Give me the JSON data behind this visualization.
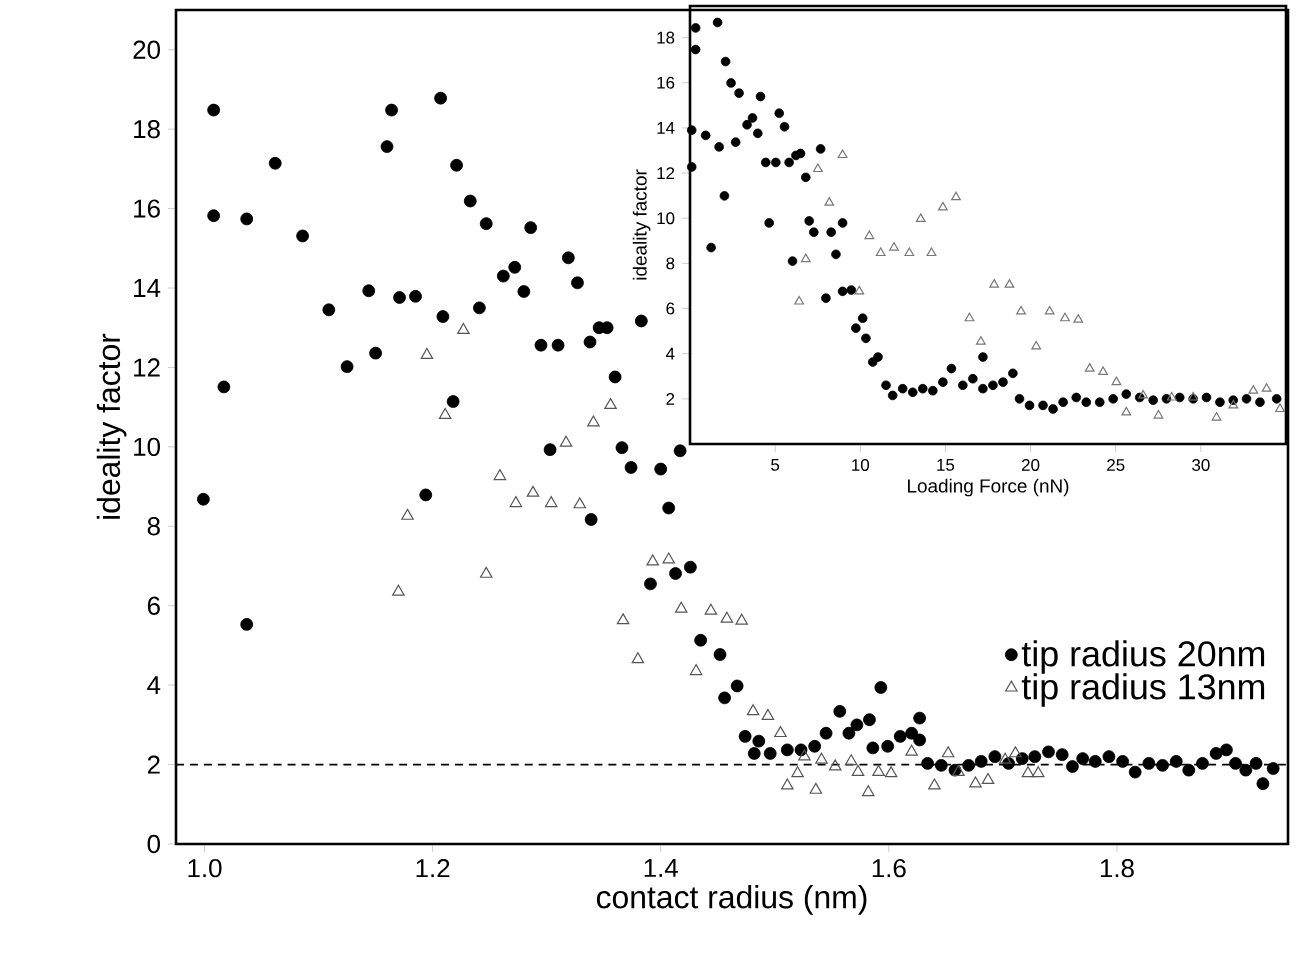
{
  "chart_data": [
    {
      "type": "scatter",
      "xlabel": "contact radius (nm)",
      "ylabel": "ideality factor",
      "xlim": [
        0.975,
        1.95
      ],
      "ylim": [
        0,
        21
      ],
      "xticks": [
        {
          "value": 1,
          "label": "1.0"
        },
        1.2,
        1.4,
        1.6,
        1.8
      ],
      "yticks": [
        0,
        2,
        4,
        6,
        8,
        10,
        12,
        14,
        16,
        18,
        20
      ],
      "legend": "bottom right",
      "ref_lines": [
        {
          "axis": "y",
          "value": 2,
          "line_style": "dashed",
          "color": "#000000"
        }
      ],
      "series": [
        {
          "name": "tip radius 20nm",
          "color": "#000000",
          "marker": "circle",
          "x": [
            1.008,
            1.008,
            1.037,
            1.062,
            1.086,
            1.017,
            1.109,
            1.125,
            1.144,
            1.15,
            1.16,
            1.164,
            1.171,
            1.185,
            1.207,
            1.209,
            1.218,
            1.221,
            1.233,
            1.241,
            1.247,
            1.262,
            1.272,
            1.28,
            1.286,
            1.295,
            1.31,
            1.319,
            1.327,
            1.338,
            1.346,
            1.353,
            1.36,
            1.383,
            1.303,
            1.366,
            1.374,
            1.4,
            1.417,
            1.194,
            0.999,
            1.037,
            1.339,
            1.407,
            1.391,
            1.413,
            1.426,
            1.435,
            1.452,
            1.456,
            1.467,
            1.474,
            1.486,
            1.482,
            1.496,
            1.511,
            1.523,
            1.535,
            1.545,
            1.557,
            1.565,
            1.572,
            1.583,
            1.586,
            1.593,
            1.599,
            1.61,
            1.62,
            1.627,
            1.627,
            1.634,
            1.646,
            1.658,
            1.67,
            1.681,
            1.693,
            1.705,
            1.717,
            1.728,
            1.74,
            1.752,
            1.761,
            1.77,
            1.781,
            1.793,
            1.805,
            1.816,
            1.828,
            1.84,
            1.852,
            1.863,
            1.875,
            1.887,
            1.896,
            1.904,
            1.913,
            1.922,
            1.928,
            1.937
          ],
          "values": [
            18.48,
            15.82,
            15.74,
            17.14,
            15.31,
            11.51,
            13.45,
            12.02,
            13.93,
            12.36,
            17.56,
            18.48,
            13.76,
            13.79,
            18.78,
            13.28,
            11.14,
            17.09,
            16.19,
            13.5,
            15.62,
            14.3,
            14.52,
            13.91,
            15.52,
            12.56,
            12.56,
            14.76,
            14.13,
            12.64,
            13.0,
            13.0,
            11.76,
            13.17,
            9.93,
            9.98,
            9.48,
            9.44,
            9.9,
            8.79,
            8.68,
            5.53,
            8.17,
            8.46,
            6.55,
            6.81,
            6.97,
            5.13,
            4.77,
            3.68,
            3.98,
            2.71,
            2.59,
            2.28,
            2.28,
            2.37,
            2.37,
            2.46,
            2.79,
            3.34,
            2.79,
            3.0,
            3.13,
            2.42,
            3.94,
            2.46,
            2.71,
            2.79,
            3.17,
            2.62,
            2.03,
            1.98,
            1.86,
            1.98,
            2.08,
            2.2,
            2.03,
            2.15,
            2.2,
            2.32,
            2.25,
            1.95,
            2.15,
            2.08,
            2.2,
            2.08,
            1.81,
            2.03,
            1.98,
            2.08,
            1.86,
            2.03,
            2.28,
            2.37,
            2.03,
            1.86,
            2.03,
            1.52,
            1.9
          ]
        },
        {
          "name": "tip radius 13nm",
          "color": "#555555",
          "marker": "triangle",
          "x": [
            1.195,
            1.227,
            1.211,
            1.317,
            1.341,
            1.356,
            1.259,
            1.288,
            1.178,
            1.17,
            1.273,
            1.304,
            1.329,
            1.247,
            1.367,
            1.38,
            1.393,
            1.407,
            1.418,
            1.431,
            1.444,
            1.458,
            1.471,
            1.481,
            1.494,
            1.505,
            1.511,
            1.52,
            1.536,
            1.526,
            1.541,
            1.553,
            1.567,
            1.573,
            1.582,
            1.591,
            1.602,
            1.62,
            1.64,
            1.652,
            1.661,
            1.676,
            1.687,
            1.702,
            1.711,
            1.722,
            1.731
          ],
          "values": [
            12.31,
            12.94,
            10.8,
            10.1,
            10.61,
            11.05,
            9.26,
            8.84,
            8.26,
            6.35,
            8.58,
            8.58,
            8.55,
            6.8,
            5.63,
            4.65,
            7.11,
            7.16,
            5.92,
            4.35,
            5.87,
            5.67,
            5.62,
            3.34,
            3.22,
            2.79,
            1.47,
            1.78,
            1.36,
            2.2,
            2.12,
            1.95,
            2.08,
            1.81,
            1.3,
            1.81,
            1.78,
            2.32,
            1.47,
            2.28,
            1.81,
            1.52,
            1.61,
            2.12,
            2.28,
            1.78,
            1.78
          ]
        }
      ]
    },
    {
      "type": "scatter",
      "xlabel": "Loading Force (nN)",
      "ylabel": "ideality factor",
      "xlim": [
        0,
        35
      ],
      "ylim": [
        0,
        19.4
      ],
      "xticks": [
        5,
        10,
        15,
        20,
        25,
        30
      ],
      "yticks": [
        2,
        4,
        6,
        8,
        10,
        12,
        14,
        16,
        18
      ],
      "series": [
        {
          "color": "#000000",
          "marker": "circle",
          "x": [
            0.33,
            0.33,
            1.62,
            0.1,
            0.1,
            0.92,
            1.24,
            1.71,
            2.02,
            2.09,
            2.41,
            2.68,
            2.88,
            3.35,
            3.67,
            3.98,
            4.14,
            4.45,
            5.04,
            4.65,
            5.24,
            5.55,
            5.82,
            6.22,
            6.49,
            6.02,
            6.8,
            7.0,
            7.27,
            7.67,
            7.98,
            8.29,
            8.57,
            8.96,
            8.96,
            9.47,
            9.74,
            10.14,
            10.33,
            10.73,
            11.04,
            11.51,
            11.9,
            12.49,
            13.08,
            13.67,
            14.26,
            14.85,
            15.35,
            16.02,
            16.61,
            17.2,
            17.2,
            17.79,
            18.38,
            18.96,
            19.35,
            19.94,
            20.73,
            21.32,
            21.91,
            22.68,
            23.27,
            24.06,
            24.85,
            25.62,
            26.41,
            27.2,
            27.98,
            28.76,
            29.55,
            30.33,
            31.12,
            31.9,
            32.68,
            33.47,
            34.45
          ],
          "values": [
            18.43,
            17.47,
            18.67,
            12.27,
            13.9,
            13.67,
            8.7,
            13.16,
            10.99,
            16.94,
            15.99,
            13.37,
            15.54,
            14.14,
            14.44,
            13.76,
            15.39,
            12.47,
            12.47,
            9.79,
            14.65,
            14.05,
            12.47,
            12.78,
            12.87,
            8.1,
            11.81,
            9.88,
            9.38,
            13.07,
            6.46,
            9.38,
            8.4,
            9.79,
            6.76,
            6.82,
            5.13,
            5.57,
            4.68,
            3.63,
            3.85,
            2.6,
            2.15,
            2.45,
            2.29,
            2.45,
            2.36,
            2.74,
            3.34,
            2.6,
            2.89,
            2.45,
            3.85,
            2.6,
            2.74,
            3.13,
            2.0,
            1.71,
            1.71,
            1.55,
            1.85,
            2.06,
            1.85,
            1.85,
            2.0,
            2.21,
            2.06,
            1.94,
            2.0,
            2.06,
            2.0,
            2.06,
            1.85,
            1.94,
            2.0,
            1.85,
            2.0
          ]
        },
        {
          "color": "#777777",
          "marker": "triangle",
          "x": [
            8.96,
            7.51,
            8.18,
            6.8,
            6.41,
            9.94,
            10.53,
            11.2,
            11.98,
            12.88,
            13.55,
            14.18,
            14.85,
            15.62,
            16.41,
            17.08,
            17.86,
            18.76,
            19.44,
            20.33,
            21.12,
            22.02,
            22.8,
            23.47,
            24.26,
            25.04,
            25.62,
            26.61,
            27.51,
            28.29,
            29.55,
            30.92,
            31.91,
            33.08,
            33.86,
            34.65
          ],
          "values": [
            12.8,
            12.18,
            10.69,
            8.19,
            6.31,
            6.76,
            9.21,
            8.46,
            8.7,
            8.46,
            9.97,
            8.46,
            10.48,
            10.93,
            5.57,
            4.53,
            7.06,
            7.06,
            5.87,
            4.32,
            5.87,
            5.57,
            5.51,
            3.34,
            3.19,
            2.74,
            1.4,
            2.15,
            1.26,
            2.06,
            2.06,
            1.17,
            1.71,
            2.36,
            2.45,
            1.55
          ]
        }
      ]
    }
  ]
}
